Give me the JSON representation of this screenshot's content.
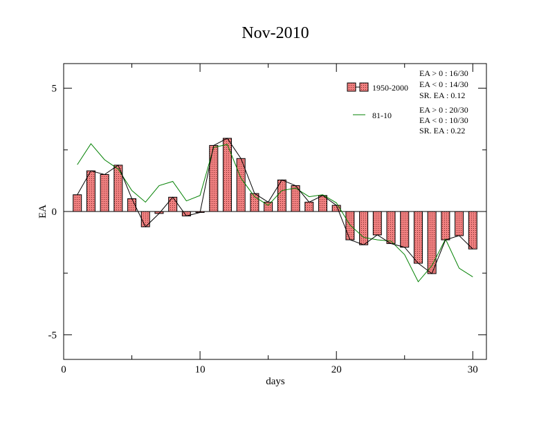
{
  "chart_data": {
    "type": "bar",
    "title": "Nov-2010",
    "xlabel": "days",
    "ylabel": "EA",
    "xlim": [
      0,
      31
    ],
    "ylim": [
      -6,
      6
    ],
    "xticks": [
      0,
      10,
      20,
      30
    ],
    "xtick_labels": [
      "0",
      "10",
      "20",
      "30"
    ],
    "yticks": [
      5,
      0,
      -5
    ],
    "ytick_labels": [
      "5",
      "0",
      "-5"
    ],
    "grid": false,
    "legend_position": "top-right",
    "x": [
      1,
      2,
      3,
      4,
      5,
      6,
      7,
      8,
      9,
      10,
      11,
      12,
      13,
      14,
      15,
      16,
      17,
      18,
      19,
      20,
      21,
      22,
      23,
      24,
      25,
      26,
      27,
      28,
      29,
      30
    ],
    "series": [
      {
        "name": "1950-2000",
        "kind": "bar-with-line",
        "bar_color": "#f08080",
        "line_color": "#000000",
        "values": [
          0.68,
          1.65,
          1.5,
          1.88,
          0.52,
          -0.62,
          -0.08,
          0.58,
          -0.18,
          -0.04,
          2.68,
          2.97,
          2.15,
          0.73,
          0.38,
          1.28,
          1.05,
          0.38,
          0.65,
          0.25,
          -1.15,
          -1.35,
          -0.95,
          -1.3,
          -1.45,
          -2.1,
          -2.52,
          -1.15,
          -0.98,
          -1.52
        ],
        "stats": [
          "EA > 0 : 16/30",
          "EA < 0 : 14/30",
          "SR. EA :  0.12"
        ]
      },
      {
        "name": "81-10",
        "kind": "line",
        "line_color": "#008000",
        "values": [
          1.9,
          2.75,
          2.1,
          1.72,
          0.85,
          0.38,
          1.05,
          1.22,
          0.43,
          0.65,
          2.6,
          2.72,
          1.35,
          0.6,
          0.25,
          0.85,
          0.95,
          0.6,
          0.68,
          0.35,
          -0.55,
          -1.05,
          -1.15,
          -1.2,
          -1.75,
          -2.85,
          -2.2,
          -1.12,
          -2.3,
          -2.65
        ],
        "stats": [
          "EA > 0 : 20/30",
          "EA < 0 : 10/30",
          "SR. EA :  0.22"
        ]
      }
    ]
  }
}
